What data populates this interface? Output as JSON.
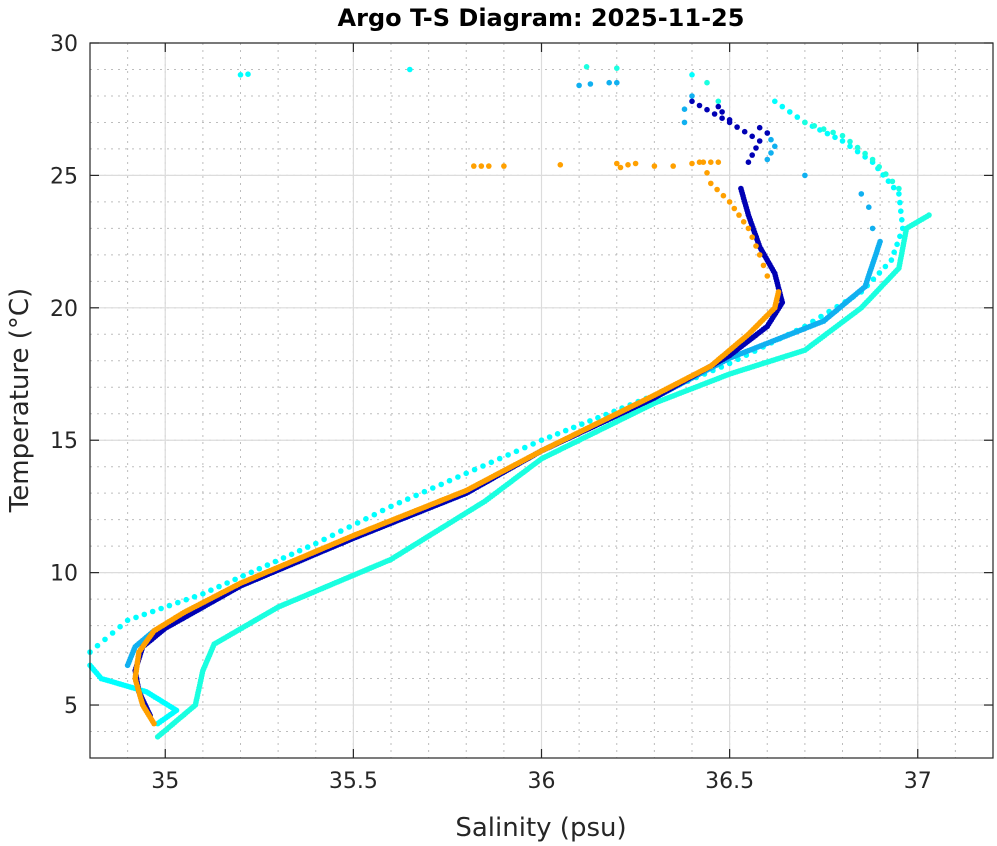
{
  "chart_data": {
    "type": "scatter",
    "title": "Argo T-S Diagram: 2025-11-25",
    "xlabel": "Salinity (psu)",
    "ylabel": "Temperature (°C)",
    "xlim": [
      34.8,
      37.2
    ],
    "ylim": [
      3,
      30
    ],
    "xticks": [
      35,
      35.5,
      36,
      36.5,
      37
    ],
    "xtick_labels": [
      "35",
      "35.5",
      "36",
      "36.5",
      "37"
    ],
    "yticks": [
      5,
      10,
      15,
      20,
      25,
      30
    ],
    "ytick_labels": [
      "5",
      "10",
      "15",
      "20",
      "25",
      "30"
    ],
    "grid": "major solid, minor dotted",
    "legend": "none",
    "series": [
      {
        "name": "profile-cyan-a",
        "color": "#00ffff",
        "path": [
          [
            34.8,
            6.5
          ],
          [
            34.83,
            6.0
          ],
          [
            34.95,
            5.5
          ],
          [
            35.03,
            4.8
          ],
          [
            34.98,
            4.3
          ]
        ],
        "path2": [
          [
            34.8,
            7.0
          ],
          [
            34.9,
            8.2
          ],
          [
            35.1,
            9.2
          ],
          [
            35.4,
            11.1
          ],
          [
            35.6,
            12.5
          ],
          [
            36.0,
            15.0
          ],
          [
            36.3,
            16.7
          ],
          [
            36.5,
            17.9
          ],
          [
            36.7,
            19.3
          ],
          [
            36.85,
            20.6
          ],
          [
            36.93,
            21.8
          ],
          [
            36.96,
            23.0
          ],
          [
            36.95,
            24.3
          ],
          [
            36.88,
            25.5
          ],
          [
            36.8,
            26.3
          ],
          [
            36.7,
            27.0
          ],
          [
            36.62,
            27.8
          ]
        ],
        "points": [
          [
            35.2,
            28.8
          ],
          [
            35.22,
            28.82
          ],
          [
            35.65,
            29.0
          ],
          [
            36.4,
            28.8
          ]
        ]
      },
      {
        "name": "profile-cyan-b",
        "color": "#1affe0",
        "path": [
          [
            34.98,
            3.8
          ],
          [
            35.08,
            5.0
          ],
          [
            35.1,
            6.3
          ],
          [
            35.13,
            7.3
          ],
          [
            35.3,
            8.7
          ],
          [
            35.6,
            10.5
          ],
          [
            35.85,
            12.7
          ],
          [
            36.0,
            14.3
          ],
          [
            36.3,
            16.4
          ],
          [
            36.5,
            17.5
          ],
          [
            36.7,
            18.4
          ],
          [
            36.85,
            20.0
          ],
          [
            36.95,
            21.5
          ],
          [
            36.97,
            23.0
          ],
          [
            37.03,
            23.5
          ]
        ],
        "path2": [
          [
            36.7,
            27.0
          ],
          [
            36.8,
            26.5
          ],
          [
            36.88,
            25.6
          ],
          [
            36.95,
            24.5
          ]
        ],
        "points": [
          [
            36.12,
            29.1
          ],
          [
            36.2,
            29.05
          ],
          [
            36.44,
            28.5
          ],
          [
            36.47,
            27.8
          ]
        ]
      },
      {
        "name": "profile-light-blue",
        "color": "#10b0f0",
        "path": [
          [
            34.9,
            6.5
          ],
          [
            34.92,
            7.2
          ],
          [
            34.97,
            7.8
          ],
          [
            35.05,
            8.3
          ],
          [
            35.2,
            9.5
          ],
          [
            35.5,
            11.3
          ],
          [
            35.8,
            13.0
          ],
          [
            36.0,
            14.6
          ],
          [
            36.3,
            16.6
          ],
          [
            36.5,
            18.1
          ],
          [
            36.75,
            19.5
          ],
          [
            36.86,
            20.8
          ],
          [
            36.9,
            22.5
          ]
        ],
        "path2": [
          [
            36.6,
            25.6
          ],
          [
            36.62,
            26.1
          ],
          [
            36.6,
            26.6
          ]
        ],
        "points": [
          [
            36.1,
            28.4
          ],
          [
            36.13,
            28.45
          ],
          [
            36.18,
            28.5
          ],
          [
            36.2,
            28.5
          ],
          [
            36.4,
            28.0
          ],
          [
            36.38,
            27.5
          ],
          [
            36.38,
            27.0
          ],
          [
            36.7,
            25.0
          ],
          [
            36.85,
            24.3
          ],
          [
            36.87,
            23.8
          ],
          [
            36.88,
            23.0
          ]
        ]
      },
      {
        "name": "profile-dark-blue",
        "color": "#0000b4",
        "path": [
          [
            34.96,
            4.6
          ],
          [
            34.93,
            5.5
          ],
          [
            34.92,
            6.3
          ],
          [
            34.94,
            7.2
          ],
          [
            35.0,
            7.9
          ],
          [
            35.2,
            9.5
          ],
          [
            35.5,
            11.3
          ],
          [
            35.8,
            13.0
          ],
          [
            36.0,
            14.6
          ],
          [
            36.3,
            16.6
          ],
          [
            36.5,
            18.2
          ],
          [
            36.6,
            19.3
          ],
          [
            36.64,
            20.2
          ],
          [
            36.62,
            21.3
          ],
          [
            36.58,
            22.3
          ],
          [
            36.55,
            23.5
          ],
          [
            36.53,
            24.5
          ]
        ],
        "path2": [
          [
            36.55,
            25.5
          ],
          [
            36.58,
            26.3
          ],
          [
            36.5,
            27.0
          ],
          [
            36.4,
            27.8
          ]
        ],
        "points": [
          [
            36.47,
            27.6
          ],
          [
            36.48,
            27.4
          ],
          [
            36.5,
            27.1
          ],
          [
            36.58,
            26.8
          ],
          [
            36.6,
            26.6
          ]
        ]
      },
      {
        "name": "profile-orange",
        "color": "#ffa000",
        "path": [
          [
            34.97,
            4.3
          ],
          [
            34.94,
            5.0
          ],
          [
            34.92,
            6.0
          ],
          [
            34.93,
            7.0
          ],
          [
            34.97,
            7.8
          ],
          [
            35.05,
            8.5
          ],
          [
            35.2,
            9.6
          ],
          [
            35.5,
            11.4
          ],
          [
            35.8,
            13.1
          ],
          [
            36.0,
            14.6
          ],
          [
            36.3,
            16.7
          ],
          [
            36.45,
            17.8
          ],
          [
            36.55,
            19.0
          ],
          [
            36.62,
            20.0
          ],
          [
            36.63,
            20.6
          ]
        ],
        "path2": [
          [
            36.6,
            21.2
          ],
          [
            36.58,
            22.0
          ],
          [
            36.55,
            23.0
          ],
          [
            36.5,
            24.0
          ],
          [
            36.45,
            24.7
          ],
          [
            36.43,
            25.5
          ]
        ],
        "points": [
          [
            35.82,
            25.35
          ],
          [
            35.84,
            25.35
          ],
          [
            35.86,
            25.35
          ],
          [
            35.9,
            25.35
          ],
          [
            36.05,
            25.4
          ],
          [
            36.2,
            25.45
          ],
          [
            36.21,
            25.3
          ],
          [
            36.23,
            25.4
          ],
          [
            36.25,
            25.45
          ],
          [
            36.3,
            25.35
          ],
          [
            36.35,
            25.35
          ],
          [
            36.4,
            25.45
          ],
          [
            36.42,
            25.5
          ],
          [
            36.45,
            25.5
          ],
          [
            36.47,
            25.5
          ]
        ]
      }
    ]
  }
}
